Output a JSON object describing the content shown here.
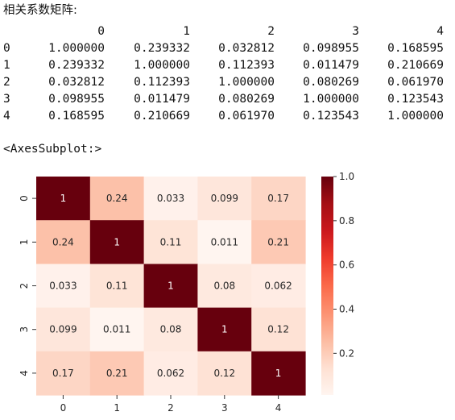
{
  "output": {
    "title": "相关系数矩阵:",
    "axes_repr": "<AxesSubplot:>"
  },
  "table": {
    "columns": [
      "0",
      "1",
      "2",
      "3",
      "4"
    ],
    "rows": [
      {
        "index": "0",
        "cells": [
          "1.000000",
          "0.239332",
          "0.032812",
          "0.098955",
          "0.168595"
        ]
      },
      {
        "index": "1",
        "cells": [
          "0.239332",
          "1.000000",
          "0.112393",
          "0.011479",
          "0.210669"
        ]
      },
      {
        "index": "2",
        "cells": [
          "0.032812",
          "0.112393",
          "1.000000",
          "0.080269",
          "0.061970"
        ]
      },
      {
        "index": "3",
        "cells": [
          "0.098955",
          "0.011479",
          "0.080269",
          "1.000000",
          "0.123543"
        ]
      },
      {
        "index": "4",
        "cells": [
          "0.168595",
          "0.210669",
          "0.061970",
          "0.123543",
          "1.000000"
        ]
      }
    ]
  },
  "chart_data": {
    "type": "heatmap",
    "x_categories": [
      "0",
      "1",
      "2",
      "3",
      "4"
    ],
    "y_categories": [
      "0",
      "1",
      "2",
      "3",
      "4"
    ],
    "values": [
      [
        1.0,
        0.239332,
        0.032812,
        0.098955,
        0.168595
      ],
      [
        0.239332,
        1.0,
        0.112393,
        0.011479,
        0.210669
      ],
      [
        0.032812,
        0.112393,
        1.0,
        0.080269,
        0.06197
      ],
      [
        0.098955,
        0.011479,
        0.080269,
        1.0,
        0.123543
      ],
      [
        0.168595,
        0.210669,
        0.06197,
        0.123543,
        1.0
      ]
    ],
    "annotations": [
      [
        "1",
        "0.24",
        "0.033",
        "0.099",
        "0.17"
      ],
      [
        "0.24",
        "1",
        "0.11",
        "0.011",
        "0.21"
      ],
      [
        "0.033",
        "0.11",
        "1",
        "0.08",
        "0.062"
      ],
      [
        "0.099",
        "0.011",
        "0.08",
        "1",
        "0.12"
      ],
      [
        "0.17",
        "0.21",
        "0.062",
        "0.12",
        "1"
      ]
    ],
    "colormap": "Reds",
    "vmin": 0.011479,
    "vmax": 1.0,
    "colorbar_ticks": [
      0.2,
      0.4,
      0.6,
      0.8,
      1.0
    ],
    "colorbar_tick_labels": [
      "0.2",
      "0.4",
      "0.6",
      "0.8",
      "1.0"
    ],
    "title": "",
    "xlabel": "",
    "ylabel": ""
  }
}
